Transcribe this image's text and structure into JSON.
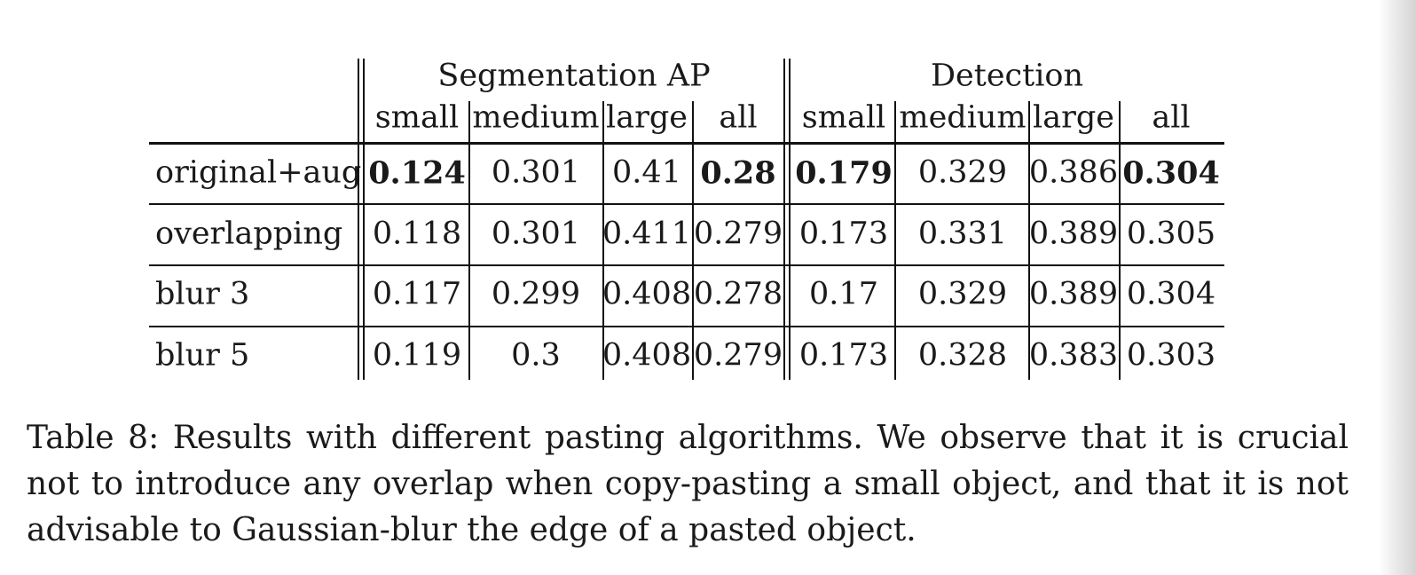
{
  "caption": "Table 8: Results with different pasting algorithms. We observe that it is crucial not to introduce any overlap when copy-pasting a small object, and that it is not advisable to Gaussian-blur the edge of a pasted object.",
  "table": {
    "group_headers": [
      "Segmentation AP",
      "Detection"
    ],
    "column_headers": [
      "small",
      "medium",
      "large",
      "all",
      "small",
      "medium",
      "large",
      "all"
    ],
    "rows": [
      {
        "label": "original+aug",
        "values": [
          "0.124",
          "0.301",
          "0.41",
          "0.28",
          "0.179",
          "0.329",
          "0.386",
          "0.304"
        ],
        "bold": [
          true,
          false,
          false,
          true,
          true,
          false,
          false,
          true
        ]
      },
      {
        "label": "overlapping",
        "values": [
          "0.118",
          "0.301",
          "0.411",
          "0.279",
          "0.173",
          "0.331",
          "0.389",
          "0.305"
        ],
        "bold": [
          false,
          false,
          false,
          false,
          false,
          false,
          false,
          false
        ]
      },
      {
        "label": "blur 3",
        "values": [
          "0.117",
          "0.299",
          "0.408",
          "0.278",
          "0.17",
          "0.329",
          "0.389",
          "0.304"
        ],
        "bold": [
          false,
          false,
          false,
          false,
          false,
          false,
          false,
          false
        ]
      },
      {
        "label": "blur 5",
        "values": [
          "0.119",
          "0.3",
          "0.408",
          "0.279",
          "0.173",
          "0.328",
          "0.383",
          "0.303"
        ],
        "bold": [
          false,
          false,
          false,
          false,
          false,
          false,
          false,
          false
        ]
      }
    ]
  }
}
